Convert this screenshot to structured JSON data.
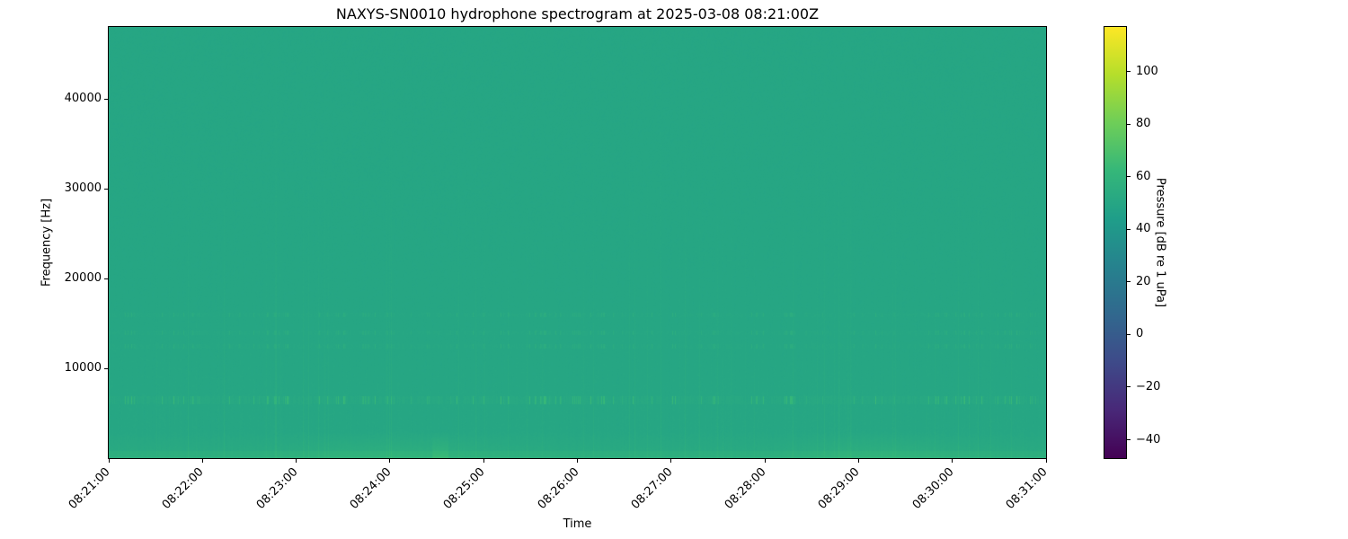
{
  "chart_data": {
    "type": "heatmap",
    "title": "NAXYS-SN0010 hydrophone spectrogram at 2025-03-08 08:21:00Z",
    "xlabel": "Time",
    "ylabel": "Frequency [Hz]",
    "x_ticks": [
      "08:21:00",
      "08:22:00",
      "08:23:00",
      "08:24:00",
      "08:25:00",
      "08:26:00",
      "08:27:00",
      "08:28:00",
      "08:29:00",
      "08:30:00",
      "08:31:00"
    ],
    "xlim": [
      "08:21:00",
      "08:31:00"
    ],
    "y_ticks": [
      10000,
      20000,
      30000,
      40000
    ],
    "ylim": [
      0,
      48000
    ],
    "colormap": "viridis",
    "colorbar": {
      "label": "Pressure [dB re 1 uPa]",
      "ticks": [
        -40,
        -20,
        0,
        20,
        40,
        60,
        80,
        100
      ],
      "range": [
        -47,
        117
      ]
    },
    "background_level_db": 50,
    "features": {
      "tonal_band_hz": 6500,
      "harmonic_bands_hz": [
        12500,
        14000,
        16000
      ],
      "low_frequency_energy_hz": [
        0,
        3000
      ]
    }
  }
}
